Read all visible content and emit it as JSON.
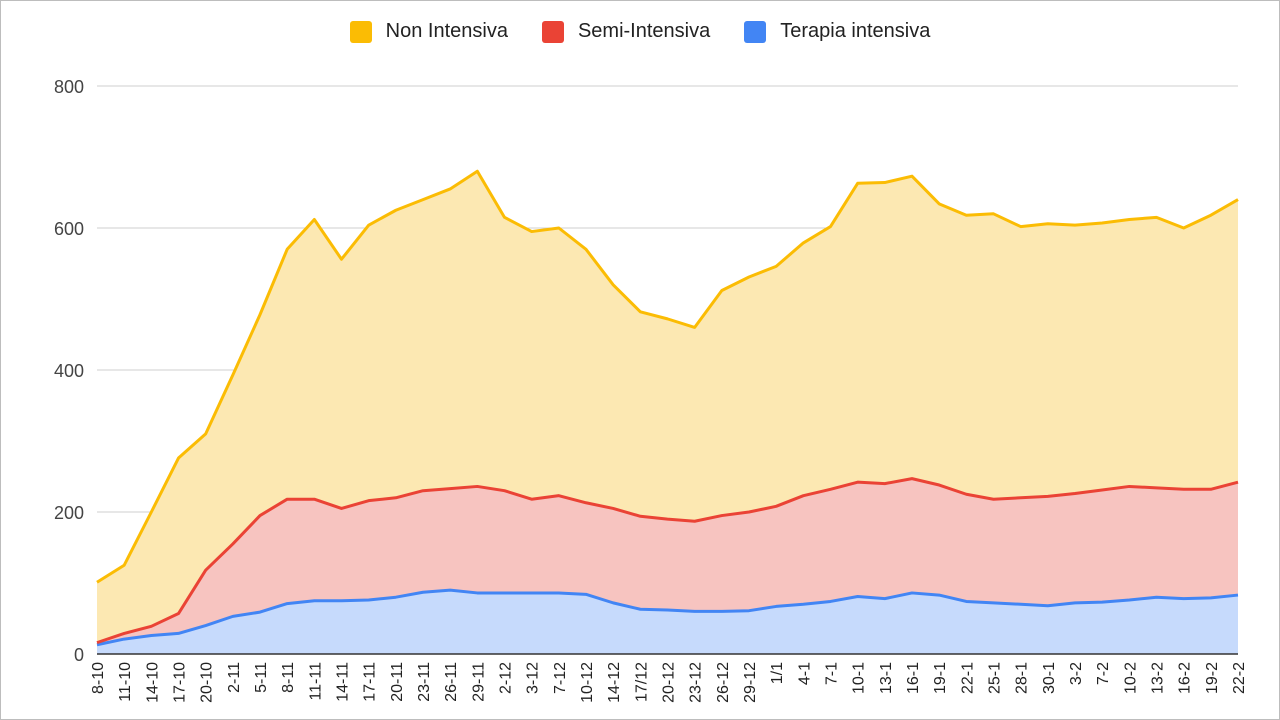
{
  "chart_data": {
    "type": "area",
    "stacked": true,
    "title": "",
    "xlabel": "",
    "ylabel": "",
    "ylim": [
      0,
      800
    ],
    "yticks": [
      "0",
      "200",
      "400",
      "600",
      "800"
    ],
    "grid": true,
    "legend_position": "top",
    "categories": [
      "8-10",
      "11-10",
      "14-10",
      "17-10",
      "20-10",
      "2-11",
      "5-11",
      "8-11",
      "11-11",
      "14-11",
      "17-11",
      "20-11",
      "23-11",
      "26-11",
      "29-11",
      "2-12",
      "3-12",
      "7-12",
      "10-12",
      "14-12",
      "17/12",
      "20-12",
      "23-12",
      "26-12",
      "29-12",
      "1/1",
      "4-1",
      "7-1",
      "10-1",
      "13-1",
      "16-1",
      "19-1",
      "22-1",
      "25-1",
      "28-1",
      "30-1",
      "3-2",
      "7-2",
      "10-2",
      "13-2",
      "16-2",
      "19-2",
      "22-2"
    ],
    "series": [
      {
        "name": "Terapia intensiva",
        "color": "#4285f4",
        "fill": "#c6dafc",
        "values": [
          13,
          21,
          26,
          29,
          40,
          53,
          59,
          71,
          75,
          75,
          76,
          80,
          87,
          90,
          86,
          86,
          86,
          86,
          84,
          72,
          63,
          62,
          60,
          60,
          61,
          67,
          70,
          74,
          81,
          78,
          86,
          83,
          74,
          72,
          70,
          68,
          72,
          73,
          76,
          80,
          78,
          79,
          83
        ]
      },
      {
        "name": "Semi-Intensiva",
        "color": "#ea4335",
        "fill": "#f7c4c0",
        "values": [
          3,
          8,
          13,
          28,
          78,
          102,
          136,
          147,
          143,
          130,
          140,
          140,
          143,
          143,
          150,
          144,
          132,
          137,
          129,
          133,
          131,
          128,
          127,
          135,
          139,
          141,
          153,
          158,
          161,
          162,
          161,
          155,
          151,
          146,
          150,
          154,
          154,
          158,
          160,
          154,
          154,
          153,
          159
        ]
      },
      {
        "name": "Non Intensiva",
        "color": "#fbbc04",
        "fill": "#fce8b2",
        "values": [
          85,
          96,
          161,
          219,
          192,
          238,
          283,
          352,
          394,
          351,
          388,
          405,
          410,
          422,
          444,
          385,
          377,
          377,
          357,
          315,
          288,
          282,
          273,
          317,
          331,
          338,
          356,
          370,
          421,
          424,
          426,
          396,
          393,
          402,
          382,
          384,
          378,
          376,
          376,
          381,
          368,
          386,
          398
        ]
      }
    ]
  },
  "legend": [
    {
      "label": "Non Intensiva",
      "color": "#fbbc04"
    },
    {
      "label": "Semi-Intensiva",
      "color": "#ea4335"
    },
    {
      "label": "Terapia intensiva",
      "color": "#4285f4"
    }
  ]
}
